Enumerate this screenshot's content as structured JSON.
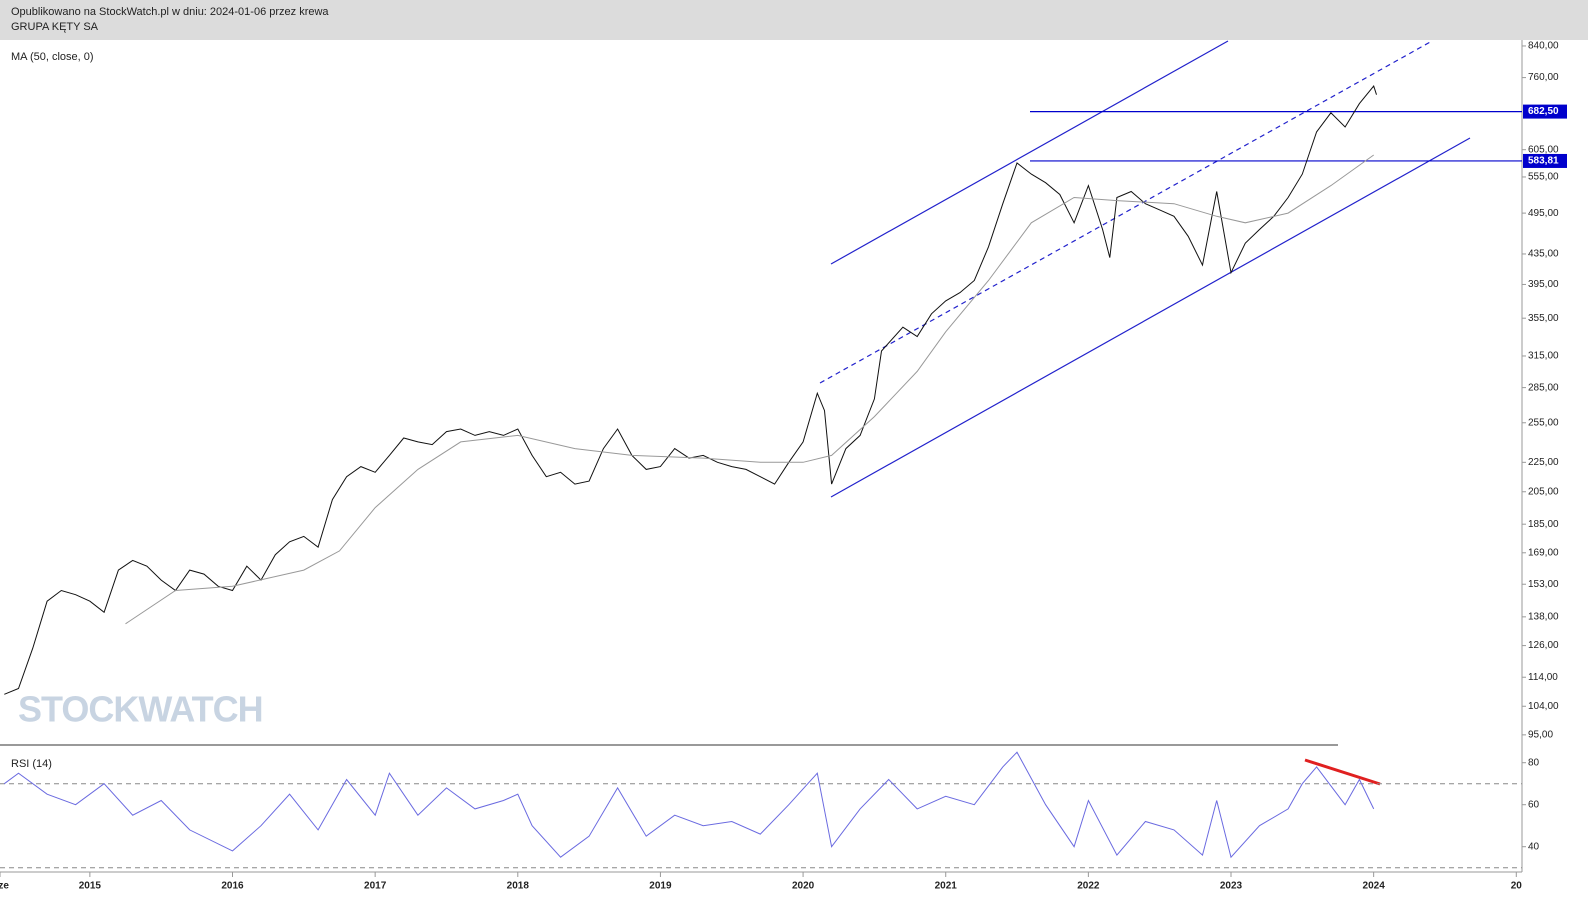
{
  "chart_data": [
    {
      "type": "line",
      "subtitle": "Opublikowano na StockWatch.pl w dniu: 2024-01-06 przez krewa",
      "title": "GRUPA KĘTY SA",
      "watermark": "STOCKWATCH",
      "log_scale": true,
      "xlim": [
        2014.37,
        2025.04
      ],
      "ylim": [
        92,
        856
      ],
      "yticks": [
        {
          "value": 840,
          "label": "840,00"
        },
        {
          "value": 760,
          "label": "760,00"
        },
        {
          "value": 605,
          "label": "605,00"
        },
        {
          "value": 555,
          "label": "555,00"
        },
        {
          "value": 495,
          "label": "495,00"
        },
        {
          "value": 435,
          "label": "435,00"
        },
        {
          "value": 395,
          "label": "395,00"
        },
        {
          "value": 355,
          "label": "355,00"
        },
        {
          "value": 315,
          "label": "315,00"
        },
        {
          "value": 285,
          "label": "285,00"
        },
        {
          "value": 255,
          "label": "255,00"
        },
        {
          "value": 225,
          "label": "225,00"
        },
        {
          "value": 205,
          "label": "205,00"
        },
        {
          "value": 185,
          "label": "185,00"
        },
        {
          "value": 169,
          "label": "169,00"
        },
        {
          "value": 153,
          "label": "153,00"
        },
        {
          "value": 138,
          "label": "138,00"
        },
        {
          "value": 126,
          "label": "126,00"
        },
        {
          "value": 114,
          "label": "114,00"
        },
        {
          "value": 104,
          "label": "104,00"
        },
        {
          "value": 95,
          "label": "95,00"
        }
      ],
      "levels": [
        {
          "value": 682.5,
          "label": "682,50"
        },
        {
          "value": 583.81,
          "label": "583,81"
        }
      ],
      "level_color": "#0000cc",
      "series": [
        {
          "color": "#111111",
          "x": [
            2014.4,
            2014.5,
            2014.6,
            2014.7,
            2014.8,
            2014.9,
            2015.0,
            2015.1,
            2015.2,
            2015.3,
            2015.4,
            2015.5,
            2015.6,
            2015.7,
            2015.8,
            2015.9,
            2016.0,
            2016.1,
            2016.2,
            2016.3,
            2016.4,
            2016.5,
            2016.6,
            2016.7,
            2016.8,
            2016.9,
            2017.0,
            2017.1,
            2017.2,
            2017.3,
            2017.4,
            2017.5,
            2017.6,
            2017.7,
            2017.8,
            2017.9,
            2018.0,
            2018.1,
            2018.2,
            2018.3,
            2018.4,
            2018.5,
            2018.6,
            2018.7,
            2018.8,
            2018.9,
            2019.0,
            2019.1,
            2019.2,
            2019.3,
            2019.4,
            2019.5,
            2019.6,
            2019.7,
            2019.8,
            2019.9,
            2020.0,
            2020.1,
            2020.15,
            2020.2,
            2020.3,
            2020.4,
            2020.5,
            2020.55,
            2020.7,
            2020.8,
            2020.9,
            2021.0,
            2021.1,
            2021.2,
            2021.3,
            2021.4,
            2021.5,
            2021.6,
            2021.7,
            2021.8,
            2021.9,
            2022.0,
            2022.1,
            2022.15,
            2022.2,
            2022.3,
            2022.4,
            2022.5,
            2022.6,
            2022.7,
            2022.8,
            2022.9,
            2023.0,
            2023.1,
            2023.2,
            2023.3,
            2023.4,
            2023.5,
            2023.6,
            2023.7,
            2023.8,
            2023.9,
            2024.0,
            2024.02
          ],
          "values": [
            108,
            110,
            125,
            145,
            150,
            148,
            145,
            140,
            160,
            165,
            162,
            155,
            150,
            160,
            158,
            152,
            150,
            162,
            155,
            168,
            175,
            178,
            172,
            200,
            215,
            222,
            218,
            230,
            243,
            240,
            238,
            248,
            250,
            245,
            248,
            245,
            250,
            230,
            215,
            218,
            210,
            212,
            235,
            250,
            230,
            220,
            222,
            235,
            228,
            230,
            225,
            222,
            220,
            215,
            210,
            225,
            240,
            280,
            265,
            210,
            235,
            245,
            275,
            320,
            345,
            335,
            360,
            375,
            385,
            400,
            445,
            510,
            580,
            560,
            545,
            525,
            480,
            540,
            470,
            430,
            520,
            530,
            510,
            500,
            490,
            460,
            420,
            530,
            410,
            450,
            470,
            490,
            520,
            560,
            640,
            680,
            650,
            700,
            740,
            720
          ]
        },
        {
          "name": "MA (50, close, 0)",
          "color": "#999999",
          "x": [
            2015.25,
            2015.6,
            2016.0,
            2016.5,
            2016.75,
            2017.0,
            2017.3,
            2017.6,
            2018.0,
            2018.4,
            2018.8,
            2019.3,
            2019.7,
            2020.0,
            2020.2,
            2020.5,
            2020.8,
            2021.0,
            2021.3,
            2021.6,
            2021.9,
            2022.2,
            2022.6,
            2022.9,
            2023.1,
            2023.4,
            2023.7,
            2024.0
          ],
          "values": [
            135,
            150,
            152,
            160,
            170,
            195,
            220,
            240,
            245,
            235,
            230,
            228,
            225,
            225,
            230,
            260,
            300,
            340,
            400,
            480,
            520,
            515,
            510,
            490,
            480,
            495,
            540,
            595
          ]
        }
      ]
    },
    {
      "type": "line",
      "xlim": [
        2014.37,
        2025.04
      ],
      "ylim": [
        27,
        87
      ],
      "yticks": [
        40,
        60,
        80
      ],
      "levels": [
        70,
        30
      ],
      "xticks": [
        {
          "value": 2014.37,
          "label": "Cze"
        },
        2015,
        2016,
        2017,
        2018,
        2019,
        2020,
        2021,
        2022,
        2023,
        2024,
        {
          "value": 2025,
          "label": "20"
        }
      ],
      "series": [
        {
          "name": "RSI (14)",
          "color": "#6a6ae0",
          "x": [
            2014.4,
            2014.5,
            2014.7,
            2014.9,
            2015.1,
            2015.3,
            2015.5,
            2015.7,
            2016.0,
            2016.2,
            2016.4,
            2016.6,
            2016.8,
            2017.0,
            2017.1,
            2017.3,
            2017.5,
            2017.7,
            2017.9,
            2018.0,
            2018.1,
            2018.3,
            2018.5,
            2018.7,
            2018.9,
            2019.1,
            2019.3,
            2019.5,
            2019.7,
            2019.9,
            2020.1,
            2020.2,
            2020.4,
            2020.6,
            2020.8,
            2021.0,
            2021.2,
            2021.4,
            2021.5,
            2021.7,
            2021.9,
            2022.0,
            2022.2,
            2022.4,
            2022.6,
            2022.8,
            2022.9,
            2023.0,
            2023.2,
            2023.4,
            2023.5,
            2023.6,
            2023.8,
            2023.9,
            2024.0
          ],
          "values": [
            70,
            75,
            65,
            60,
            70,
            55,
            62,
            48,
            38,
            50,
            65,
            48,
            72,
            55,
            75,
            55,
            68,
            58,
            62,
            65,
            50,
            35,
            45,
            68,
            45,
            55,
            50,
            52,
            46,
            60,
            75,
            40,
            58,
            72,
            58,
            64,
            60,
            78,
            85,
            60,
            40,
            62,
            36,
            52,
            48,
            36,
            62,
            35,
            50,
            58,
            70,
            78,
            60,
            72,
            58
          ]
        }
      ]
    }
  ]
}
